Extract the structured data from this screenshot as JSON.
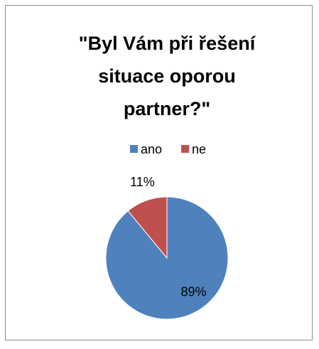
{
  "chart_data": {
    "type": "pie",
    "title": "\"Byl Vám při řešení situace oporou partner?\"",
    "categories": [
      "ano",
      "ne"
    ],
    "values": [
      89,
      11
    ],
    "value_labels": [
      "89%",
      "11%"
    ],
    "colors": [
      "#4f81bd",
      "#c0504d"
    ],
    "legend": "top"
  }
}
